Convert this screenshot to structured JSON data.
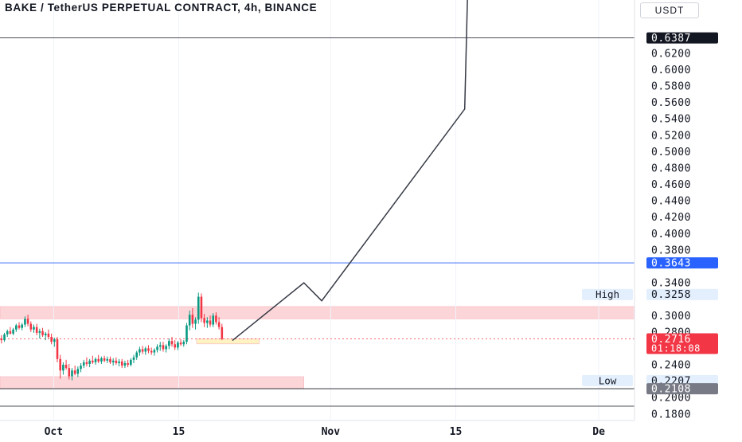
{
  "title": "BAKE / TetherUS PERPETUAL CONTRACT, 4h, BINANCE",
  "currency": "USDT",
  "chart_data": {
    "type": "candlestick",
    "y_axis": {
      "ticks": [
        "0.6200",
        "0.6000",
        "0.5800",
        "0.5600",
        "0.5400",
        "0.5200",
        "0.5000",
        "0.4800",
        "0.4600",
        "0.4400",
        "0.4200",
        "0.4000",
        "0.3800",
        "0.3400",
        "0.3000",
        "0.2800",
        "0.2400",
        "0.2000",
        "0.1800"
      ],
      "range": [
        0.172,
        0.685
      ]
    },
    "x_axis": {
      "ticks": [
        {
          "label": "Oct",
          "date": "2023-10-01"
        },
        {
          "label": "15",
          "date": "2023-10-15"
        },
        {
          "label": "Nov",
          "date": "2023-11-01"
        },
        {
          "label": "15",
          "date": "2023-11-15"
        },
        {
          "label": "De",
          "date": "2023-12-01"
        }
      ],
      "range": [
        "2023-09-25",
        "2023-12-05"
      ]
    },
    "price_tags": [
      {
        "name": "top-line-tag",
        "value": "0.6387",
        "price": 0.6387,
        "bg": "#131722",
        "fg": "#ffffff"
      },
      {
        "name": "blue-line-tag",
        "value": "0.3643",
        "price": 0.3643,
        "bg": "#2962ff",
        "fg": "#ffffff"
      },
      {
        "name": "last-price-tag",
        "value": "0.2716",
        "sub": "01:18:08",
        "price": 0.2716,
        "bg": "#f23645",
        "fg": "#ffffff"
      },
      {
        "name": "low-line-tag",
        "value": "0.2108",
        "price": 0.2108,
        "bg": "#787b86",
        "fg": "#ffffff"
      }
    ],
    "labels": [
      {
        "name": "high-label",
        "text": "High",
        "value": "0.3258",
        "price": 0.3258
      },
      {
        "name": "low-label",
        "text": "Low",
        "value": "0.2207",
        "price": 0.2207
      }
    ],
    "horizontal_lines": [
      {
        "price": 0.6387,
        "color": "#131722"
      },
      {
        "price": 0.3643,
        "color": "#2962ff"
      },
      {
        "price": 0.2108,
        "color": "#131722"
      },
      {
        "price": 0.1895,
        "color": "#131722"
      }
    ],
    "zones": [
      {
        "name": "resistance-zone",
        "price_top": 0.311,
        "price_bottom": 0.296,
        "from": "2023-09-25",
        "to": "2023-12-05",
        "color": "#fcd5d8"
      },
      {
        "name": "support-zone",
        "price_top": 0.2255,
        "price_bottom": 0.2108,
        "from": "2023-09-25",
        "to": "2023-10-29",
        "color": "#fcd5d8"
      },
      {
        "name": "entry-zone",
        "price_top": 0.2715,
        "price_bottom": 0.2655,
        "from": "2023-10-17",
        "to": "2023-10-24",
        "color": "#fff3c4"
      }
    ],
    "projection": [
      {
        "date": "2023-10-21",
        "price": 0.2695
      },
      {
        "date": "2023-10-29",
        "price": 0.34
      },
      {
        "date": "2023-10-31",
        "price": 0.318
      },
      {
        "date": "2023-11-16",
        "price": 0.552
      },
      {
        "date": "2023-11-16.3",
        "price": 0.685
      }
    ],
    "candles": [
      {
        "o": 0.272,
        "h": 0.276,
        "l": 0.266,
        "c": 0.27
      },
      {
        "o": 0.27,
        "h": 0.279,
        "l": 0.268,
        "c": 0.277
      },
      {
        "o": 0.277,
        "h": 0.283,
        "l": 0.274,
        "c": 0.281
      },
      {
        "o": 0.281,
        "h": 0.286,
        "l": 0.277,
        "c": 0.278
      },
      {
        "o": 0.278,
        "h": 0.285,
        "l": 0.276,
        "c": 0.283
      },
      {
        "o": 0.283,
        "h": 0.29,
        "l": 0.28,
        "c": 0.288
      },
      {
        "o": 0.288,
        "h": 0.292,
        "l": 0.283,
        "c": 0.285
      },
      {
        "o": 0.285,
        "h": 0.291,
        "l": 0.282,
        "c": 0.289
      },
      {
        "o": 0.289,
        "h": 0.299,
        "l": 0.286,
        "c": 0.296
      },
      {
        "o": 0.296,
        "h": 0.301,
        "l": 0.287,
        "c": 0.29
      },
      {
        "o": 0.29,
        "h": 0.293,
        "l": 0.28,
        "c": 0.283
      },
      {
        "o": 0.283,
        "h": 0.289,
        "l": 0.279,
        "c": 0.286
      },
      {
        "o": 0.286,
        "h": 0.29,
        "l": 0.276,
        "c": 0.279
      },
      {
        "o": 0.279,
        "h": 0.284,
        "l": 0.272,
        "c": 0.281
      },
      {
        "o": 0.281,
        "h": 0.285,
        "l": 0.274,
        "c": 0.276
      },
      {
        "o": 0.276,
        "h": 0.28,
        "l": 0.27,
        "c": 0.278
      },
      {
        "o": 0.278,
        "h": 0.283,
        "l": 0.272,
        "c": 0.274
      },
      {
        "o": 0.274,
        "h": 0.278,
        "l": 0.265,
        "c": 0.268
      },
      {
        "o": 0.268,
        "h": 0.273,
        "l": 0.262,
        "c": 0.271
      },
      {
        "o": 0.271,
        "h": 0.274,
        "l": 0.243,
        "c": 0.247
      },
      {
        "o": 0.247,
        "h": 0.252,
        "l": 0.223,
        "c": 0.233
      },
      {
        "o": 0.233,
        "h": 0.243,
        "l": 0.228,
        "c": 0.24
      },
      {
        "o": 0.24,
        "h": 0.246,
        "l": 0.234,
        "c": 0.236
      },
      {
        "o": 0.236,
        "h": 0.241,
        "l": 0.222,
        "c": 0.226
      },
      {
        "o": 0.226,
        "h": 0.236,
        "l": 0.221,
        "c": 0.233
      },
      {
        "o": 0.233,
        "h": 0.239,
        "l": 0.227,
        "c": 0.229
      },
      {
        "o": 0.229,
        "h": 0.238,
        "l": 0.225,
        "c": 0.235
      },
      {
        "o": 0.235,
        "h": 0.242,
        "l": 0.231,
        "c": 0.239
      },
      {
        "o": 0.239,
        "h": 0.246,
        "l": 0.236,
        "c": 0.243
      },
      {
        "o": 0.243,
        "h": 0.249,
        "l": 0.238,
        "c": 0.241
      },
      {
        "o": 0.241,
        "h": 0.247,
        "l": 0.237,
        "c": 0.245
      },
      {
        "o": 0.245,
        "h": 0.251,
        "l": 0.241,
        "c": 0.243
      },
      {
        "o": 0.243,
        "h": 0.249,
        "l": 0.24,
        "c": 0.247
      },
      {
        "o": 0.247,
        "h": 0.252,
        "l": 0.242,
        "c": 0.244
      },
      {
        "o": 0.244,
        "h": 0.25,
        "l": 0.241,
        "c": 0.248
      },
      {
        "o": 0.248,
        "h": 0.251,
        "l": 0.243,
        "c": 0.245
      },
      {
        "o": 0.245,
        "h": 0.25,
        "l": 0.242,
        "c": 0.247
      },
      {
        "o": 0.247,
        "h": 0.25,
        "l": 0.241,
        "c": 0.243
      },
      {
        "o": 0.243,
        "h": 0.248,
        "l": 0.239,
        "c": 0.245
      },
      {
        "o": 0.245,
        "h": 0.249,
        "l": 0.24,
        "c": 0.242
      },
      {
        "o": 0.242,
        "h": 0.247,
        "l": 0.238,
        "c": 0.244
      },
      {
        "o": 0.244,
        "h": 0.247,
        "l": 0.236,
        "c": 0.239
      },
      {
        "o": 0.239,
        "h": 0.245,
        "l": 0.236,
        "c": 0.242
      },
      {
        "o": 0.242,
        "h": 0.246,
        "l": 0.237,
        "c": 0.24
      },
      {
        "o": 0.24,
        "h": 0.248,
        "l": 0.238,
        "c": 0.246
      },
      {
        "o": 0.246,
        "h": 0.252,
        "l": 0.242,
        "c": 0.249
      },
      {
        "o": 0.249,
        "h": 0.257,
        "l": 0.246,
        "c": 0.255
      },
      {
        "o": 0.255,
        "h": 0.262,
        "l": 0.251,
        "c": 0.259
      },
      {
        "o": 0.259,
        "h": 0.263,
        "l": 0.253,
        "c": 0.256
      },
      {
        "o": 0.256,
        "h": 0.262,
        "l": 0.252,
        "c": 0.26
      },
      {
        "o": 0.26,
        "h": 0.264,
        "l": 0.254,
        "c": 0.257
      },
      {
        "o": 0.257,
        "h": 0.261,
        "l": 0.252,
        "c": 0.255
      },
      {
        "o": 0.255,
        "h": 0.26,
        "l": 0.251,
        "c": 0.258
      },
      {
        "o": 0.258,
        "h": 0.265,
        "l": 0.255,
        "c": 0.262
      },
      {
        "o": 0.262,
        "h": 0.268,
        "l": 0.257,
        "c": 0.264
      },
      {
        "o": 0.264,
        "h": 0.268,
        "l": 0.256,
        "c": 0.259
      },
      {
        "o": 0.259,
        "h": 0.265,
        "l": 0.255,
        "c": 0.263
      },
      {
        "o": 0.263,
        "h": 0.272,
        "l": 0.259,
        "c": 0.269
      },
      {
        "o": 0.269,
        "h": 0.274,
        "l": 0.262,
        "c": 0.265
      },
      {
        "o": 0.265,
        "h": 0.27,
        "l": 0.258,
        "c": 0.261
      },
      {
        "o": 0.261,
        "h": 0.269,
        "l": 0.258,
        "c": 0.267
      },
      {
        "o": 0.267,
        "h": 0.271,
        "l": 0.263,
        "c": 0.265
      },
      {
        "o": 0.265,
        "h": 0.27,
        "l": 0.262,
        "c": 0.268
      },
      {
        "o": 0.268,
        "h": 0.291,
        "l": 0.265,
        "c": 0.288
      },
      {
        "o": 0.288,
        "h": 0.306,
        "l": 0.282,
        "c": 0.301
      },
      {
        "o": 0.301,
        "h": 0.309,
        "l": 0.285,
        "c": 0.29
      },
      {
        "o": 0.29,
        "h": 0.298,
        "l": 0.283,
        "c": 0.295
      },
      {
        "o": 0.295,
        "h": 0.328,
        "l": 0.29,
        "c": 0.323
      },
      {
        "o": 0.323,
        "h": 0.327,
        "l": 0.292,
        "c": 0.297
      },
      {
        "o": 0.297,
        "h": 0.302,
        "l": 0.286,
        "c": 0.291
      },
      {
        "o": 0.291,
        "h": 0.298,
        "l": 0.285,
        "c": 0.294
      },
      {
        "o": 0.294,
        "h": 0.3,
        "l": 0.286,
        "c": 0.289
      },
      {
        "o": 0.289,
        "h": 0.303,
        "l": 0.286,
        "c": 0.3
      },
      {
        "o": 0.3,
        "h": 0.304,
        "l": 0.289,
        "c": 0.292
      },
      {
        "o": 0.292,
        "h": 0.298,
        "l": 0.283,
        "c": 0.286
      },
      {
        "o": 0.286,
        "h": 0.29,
        "l": 0.27,
        "c": 0.2716
      }
    ]
  }
}
